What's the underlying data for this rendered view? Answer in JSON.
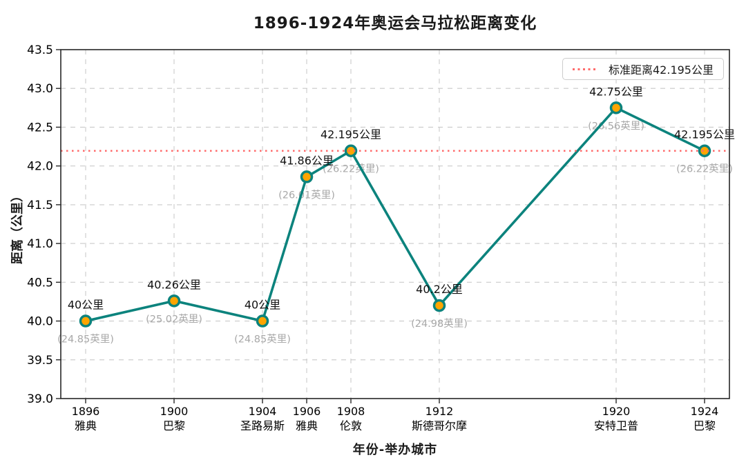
{
  "chart_data": {
    "type": "line",
    "title": "1896-1924年奥运会马拉松距离变化",
    "xlabel": "年份-举办城市",
    "ylabel": "距离（公里）",
    "ylim": [
      39.0,
      43.5
    ],
    "y_ticks": [
      "39.0",
      "39.5",
      "40.0",
      "40.5",
      "41.0",
      "41.5",
      "42.0",
      "42.5",
      "43.0",
      "43.5"
    ],
    "x_range": [
      1896,
      1924
    ],
    "grid": true,
    "legend_position": "upper right",
    "reference_line": {
      "value": 42.195,
      "legend_label": "标准距离42.195公里"
    },
    "points": [
      {
        "year": 1896,
        "city": "雅典",
        "km": 40.0,
        "km_label": "40公里",
        "mile_label": "(24.85英里)"
      },
      {
        "year": 1900,
        "city": "巴黎",
        "km": 40.26,
        "km_label": "40.26公里",
        "mile_label": "(25.02英里)"
      },
      {
        "year": 1904,
        "city": "圣路易斯",
        "km": 40.0,
        "km_label": "40公里",
        "mile_label": "(24.85英里)"
      },
      {
        "year": 1906,
        "city": "雅典",
        "km": 41.86,
        "km_label": "41.86公里",
        "mile_label": "(26.01英里)"
      },
      {
        "year": 1908,
        "city": "伦敦",
        "km": 42.195,
        "km_label": "42.195公里",
        "mile_label": "(26.22英里)"
      },
      {
        "year": 1912,
        "city": "斯德哥尔摩",
        "km": 40.2,
        "km_label": "40.2公里",
        "mile_label": "(24.98英里)"
      },
      {
        "year": 1920,
        "city": "安特卫普",
        "km": 42.75,
        "km_label": "42.75公里",
        "mile_label": "(26.56英里)"
      },
      {
        "year": 1924,
        "city": "巴黎",
        "km": 42.195,
        "km_label": "42.195公里",
        "mile_label": "(26.22英里)"
      }
    ],
    "colors": {
      "line": "#0c837d",
      "marker_fill": "#ffa500",
      "marker_edge": "#0c837d",
      "reference": "#ff6a6a",
      "grid": "#c9c9c9",
      "axis": "#262626",
      "value_label": "#111111",
      "mile_label": "#a8a8a8"
    }
  }
}
